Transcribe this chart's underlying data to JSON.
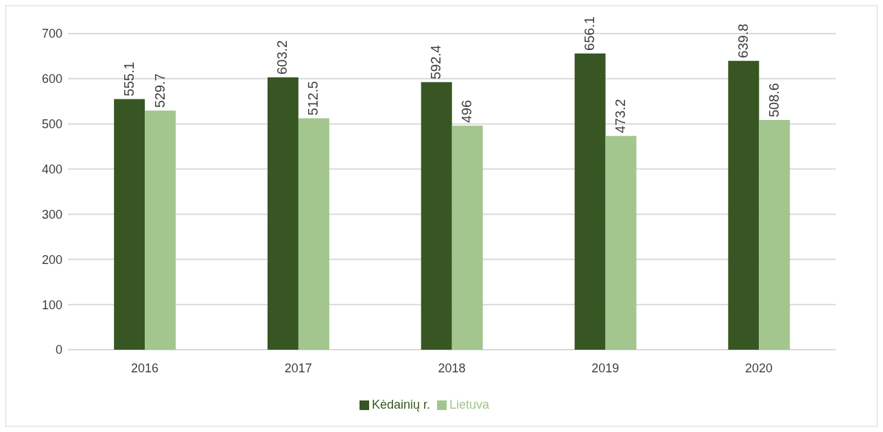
{
  "chart_data": {
    "type": "bar",
    "categories": [
      "2016",
      "2017",
      "2018",
      "2019",
      "2020"
    ],
    "series": [
      {
        "name": "Kėdainių r.",
        "color": "#375623",
        "values": [
          555.1,
          603.2,
          592.4,
          656.1,
          639.8
        ]
      },
      {
        "name": "Lietuva",
        "color": "#a2c68d",
        "values": [
          529.7,
          512.5,
          496,
          473.2,
          508.6
        ]
      }
    ],
    "ylim": [
      0,
      700
    ],
    "yticks": [
      0,
      100,
      200,
      300,
      400,
      500,
      600,
      700
    ],
    "grid": "y",
    "legend": "bottom",
    "data_labels": true
  }
}
